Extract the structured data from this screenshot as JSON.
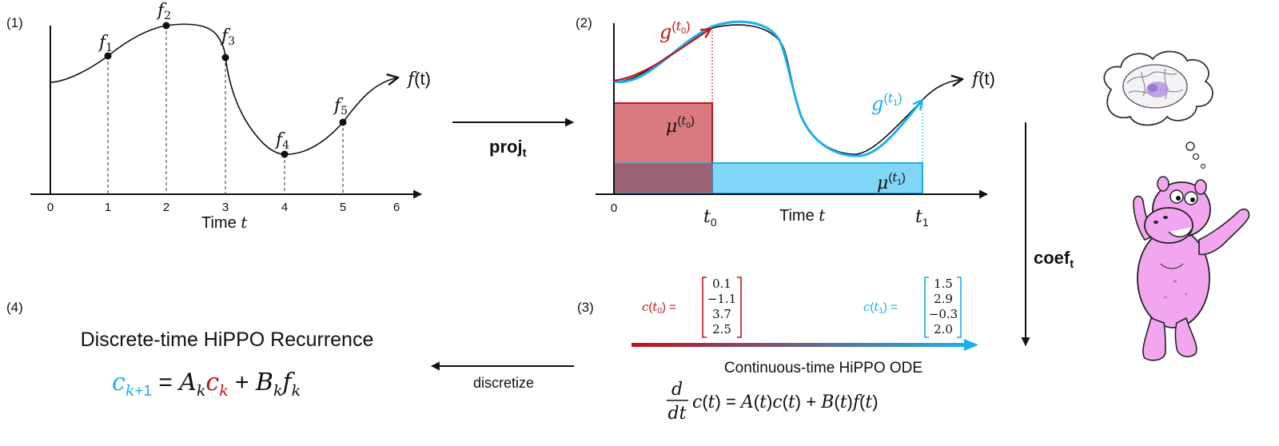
{
  "panel1": {
    "tag": "(1)",
    "x_ticks": [
      "0",
      "1",
      "2",
      "3",
      "4",
      "5",
      "6"
    ],
    "x_label": "Time t",
    "curve_label": "f(t)",
    "points": [
      "f1",
      "f2",
      "f3",
      "f4",
      "f5"
    ]
  },
  "arrow_proj": {
    "label": "proj_t"
  },
  "panel2": {
    "tag": "(2)",
    "x_ticks": [
      "0",
      "t0",
      "t1"
    ],
    "x_label": "Time t",
    "curve_label": "f(t)",
    "g_t0": "g^(t0)",
    "g_t1": "g^(t1)",
    "mu_t0": "μ^(t0)",
    "mu_t1": "μ^(t1)"
  },
  "arrow_coef": {
    "label": "coef_t"
  },
  "panel3": {
    "tag": "(3)",
    "c_t0_label": "c(t0) =",
    "c_t0": [
      "0.1",
      "−1.1",
      "3.7",
      "2.5"
    ],
    "c_t1_label": "c(t1) =",
    "c_t1": [
      "1.5",
      "2.9",
      "−0.3",
      "2.0"
    ],
    "title": "Continuous-time HiPPO ODE",
    "equation": "d/dt c(t) = A(t)c(t) + B(t)f(t)"
  },
  "arrow_discretize": {
    "label": "discretize"
  },
  "panel4": {
    "tag": "(4)",
    "title": "Discrete-time HiPPO Recurrence",
    "equation": "c_{k+1} = A_k c_k + B_k f_k"
  },
  "colors": {
    "red": "#c0141c",
    "red_fill": "#d97b7e",
    "blue": "#1bb0e8",
    "blue_fill": "#7fd6f6",
    "overlap": "#9a6272",
    "hippo_pink": "#f2a6ef",
    "brain_purple": "#b496e0"
  },
  "icons": [
    "hippo-mascot-icon",
    "thought-bubble-icon",
    "brain-icon"
  ]
}
